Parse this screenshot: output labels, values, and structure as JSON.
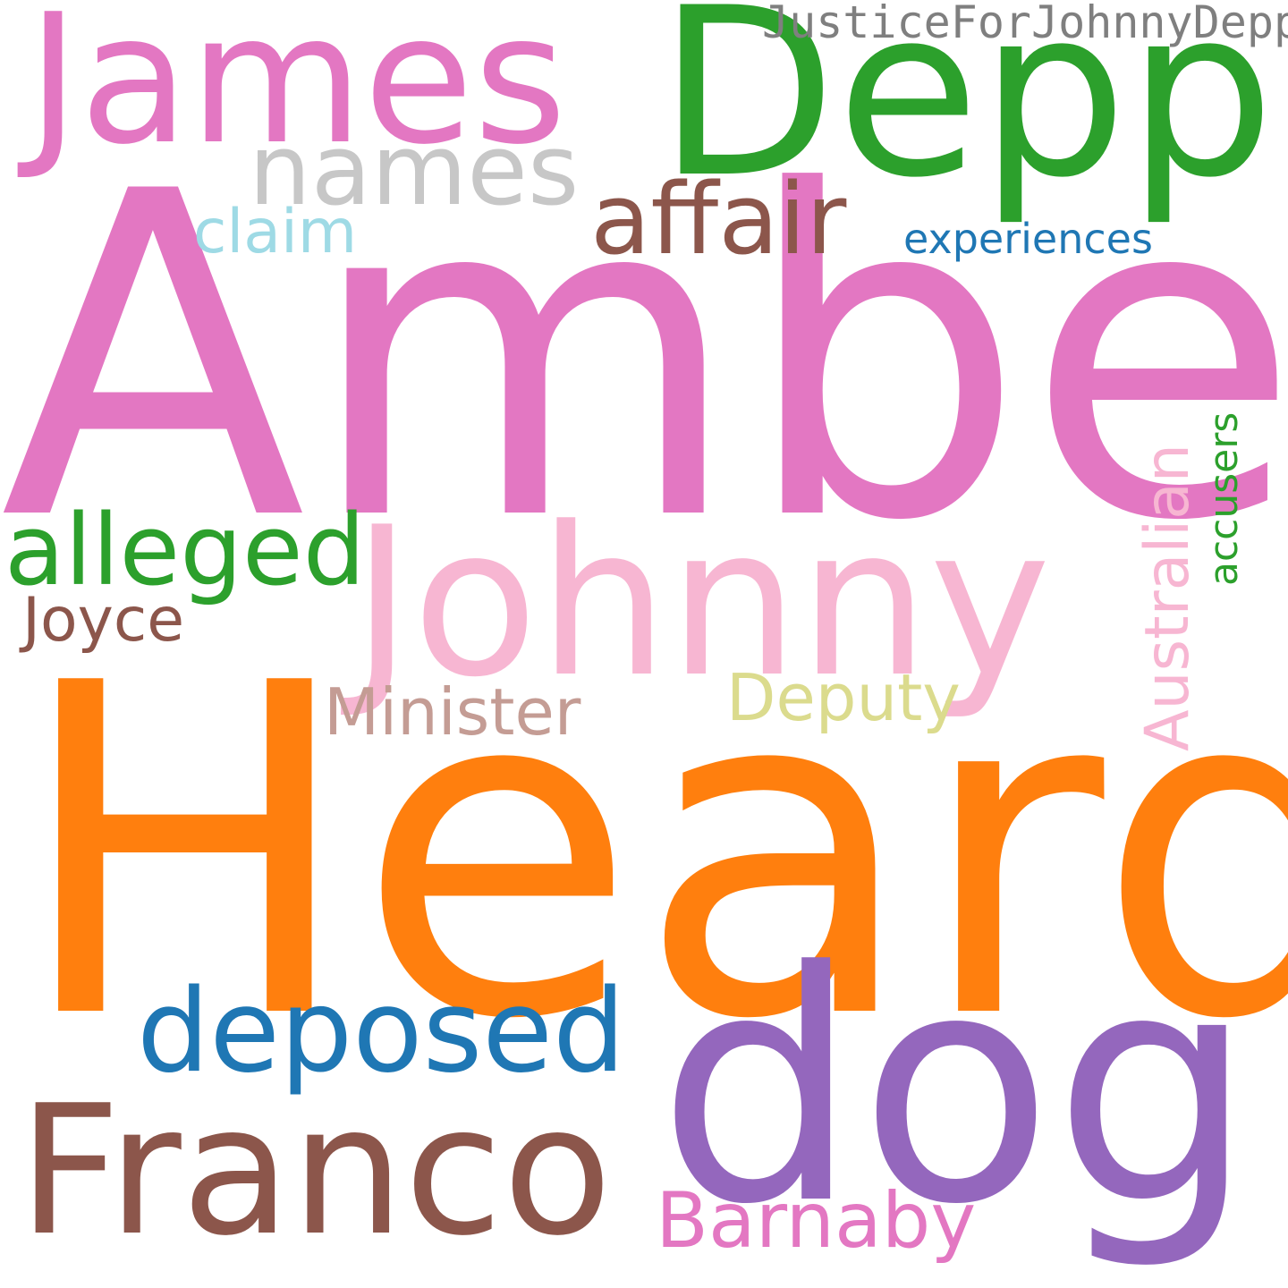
{
  "words": {
    "amber": {
      "text": "Amber",
      "color": "#e377c2"
    },
    "heard": {
      "text": "Heard",
      "color": "#ff7f0e"
    },
    "depp": {
      "text": "Depp",
      "color": "#2ca02c"
    },
    "james": {
      "text": "James",
      "color": "#e377c2"
    },
    "justice": {
      "text": "JusticeForJohnnyDepp",
      "color": "#7f7f7f"
    },
    "names": {
      "text": "names",
      "color": "#c7c7c7"
    },
    "affair": {
      "text": "affair",
      "color": "#8c564b"
    },
    "claim": {
      "text": "claim",
      "color": "#9edae5"
    },
    "experiences": {
      "text": "experiences",
      "color": "#1f77b4"
    },
    "johnny": {
      "text": "Johnny",
      "color": "#f7b6d2"
    },
    "alleged": {
      "text": "alleged",
      "color": "#2ca02c"
    },
    "joyce": {
      "text": "Joyce",
      "color": "#8c564b"
    },
    "minister": {
      "text": "Minister",
      "color": "#c49c94"
    },
    "deputy": {
      "text": "Deputy",
      "color": "#dbdb8d"
    },
    "australian": {
      "text": "Australian",
      "color": "#f7b6d2"
    },
    "accusers": {
      "text": "accusers",
      "color": "#2ca02c"
    },
    "deposed": {
      "text": "deposed",
      "color": "#1f77b4"
    },
    "dog": {
      "text": "dog",
      "color": "#9467bd"
    },
    "franco": {
      "text": "Franco",
      "color": "#8c564b"
    },
    "barnaby": {
      "text": "Barnaby",
      "color": "#e377c2"
    }
  }
}
